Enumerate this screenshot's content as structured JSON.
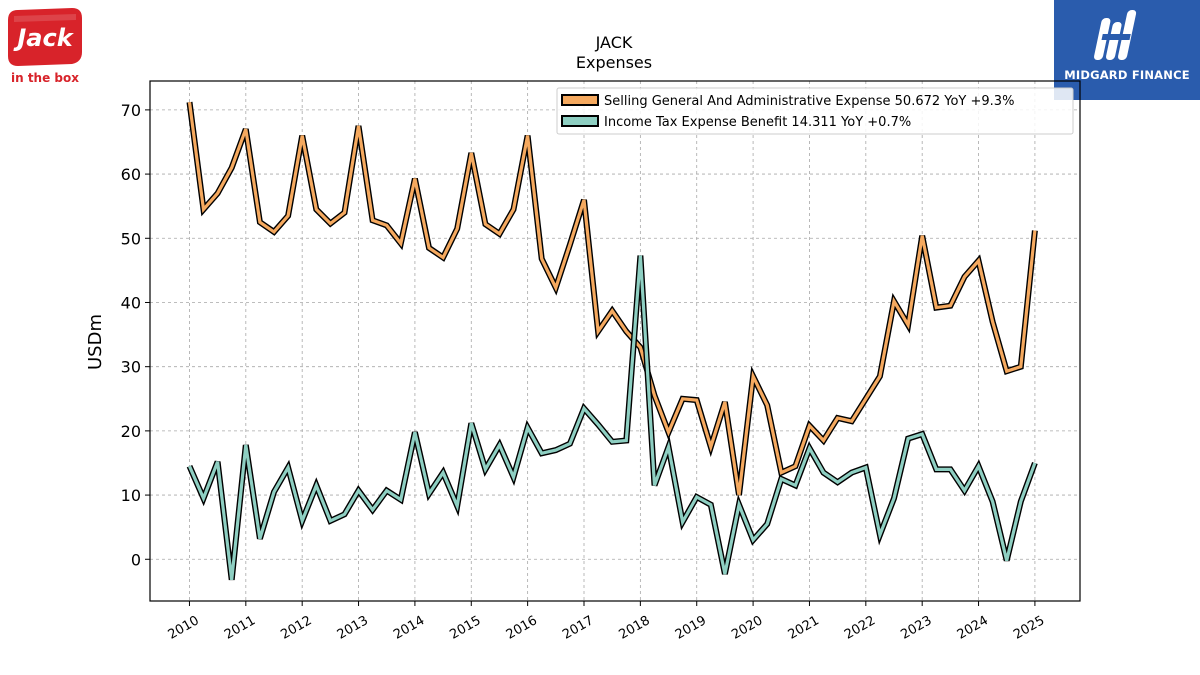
{
  "brand_left": {
    "name": "Jack",
    "tagline": "in the box",
    "color": "#d8232a"
  },
  "brand_right": {
    "name": "MIDGARD FINANCE",
    "color": "#2a5cad"
  },
  "chart_data": {
    "type": "line",
    "title": "JACK",
    "subtitle": "Expenses",
    "ylabel": "USDm",
    "xlabel": "",
    "ylim": [
      -6.5,
      74.5
    ],
    "xlim": [
      2009.3,
      2025.8
    ],
    "yticks": [
      0,
      10,
      20,
      30,
      40,
      50,
      60,
      70
    ],
    "xticks": [
      "2010",
      "2011",
      "2012",
      "2013",
      "2014",
      "2015",
      "2016",
      "2017",
      "2018",
      "2019",
      "2020",
      "2021",
      "2022",
      "2023",
      "2024",
      "2025"
    ],
    "grid": true,
    "legend_position": "top-right",
    "series": [
      {
        "name": "Selling General And Administrative Expense",
        "legend": "Selling General And Administrative Expense  50.672 YoY +9.3%",
        "color": "#f5a95f",
        "x": [
          2010.0,
          2010.25,
          2010.5,
          2010.75,
          2011.0,
          2011.25,
          2011.5,
          2011.75,
          2012.0,
          2012.25,
          2012.5,
          2012.75,
          2013.0,
          2013.25,
          2013.5,
          2013.75,
          2014.0,
          2014.25,
          2014.5,
          2014.75,
          2015.0,
          2015.25,
          2015.5,
          2015.75,
          2016.0,
          2016.25,
          2016.5,
          2016.75,
          2017.0,
          2017.25,
          2017.5,
          2017.75,
          2018.0,
          2018.25,
          2018.5,
          2018.75,
          2019.0,
          2019.25,
          2019.5,
          2019.75,
          2020.0,
          2020.25,
          2020.5,
          2020.75,
          2021.0,
          2021.25,
          2021.5,
          2021.75,
          2022.0,
          2022.25,
          2022.5,
          2022.75,
          2023.0,
          2023.25,
          2023.5,
          2023.75,
          2024.0,
          2024.25,
          2024.5,
          2024.75,
          2025.0
        ],
        "values": [
          71.2,
          54.5,
          57.0,
          61.0,
          67.0,
          52.5,
          51.0,
          53.5,
          66.0,
          54.5,
          52.3,
          54.0,
          67.5,
          52.8,
          52.0,
          49.2,
          59.3,
          48.5,
          47.0,
          51.5,
          63.3,
          52.2,
          50.7,
          54.5,
          66.0,
          46.8,
          42.3,
          49.0,
          56.0,
          35.5,
          38.7,
          35.5,
          33.0,
          25.5,
          19.8,
          25.0,
          24.8,
          17.5,
          24.5,
          10.0,
          28.5,
          24.0,
          13.5,
          14.5,
          20.8,
          18.5,
          22.0,
          21.5,
          25.0,
          28.5,
          40.2,
          36.5,
          50.4,
          39.2,
          39.5,
          44.0,
          46.5,
          37.0,
          29.3,
          30.0,
          51.2
        ]
      },
      {
        "name": "Income Tax Expense Benefit",
        "legend": "Income Tax Expense Benefit  14.311 YoY +0.7%",
        "color": "#8ecfc2",
        "x": [
          2010.0,
          2010.25,
          2010.5,
          2010.75,
          2011.0,
          2011.25,
          2011.5,
          2011.75,
          2012.0,
          2012.25,
          2012.5,
          2012.75,
          2013.0,
          2013.25,
          2013.5,
          2013.75,
          2014.0,
          2014.25,
          2014.5,
          2014.75,
          2015.0,
          2015.25,
          2015.5,
          2015.75,
          2016.0,
          2016.25,
          2016.5,
          2016.75,
          2017.0,
          2017.25,
          2017.5,
          2017.75,
          2018.0,
          2018.25,
          2018.5,
          2018.75,
          2019.0,
          2019.25,
          2019.5,
          2019.75,
          2020.0,
          2020.25,
          2020.5,
          2020.75,
          2021.0,
          2021.25,
          2021.5,
          2021.75,
          2022.0,
          2022.25,
          2022.5,
          2022.75,
          2023.0,
          2023.25,
          2023.5,
          2023.75,
          2024.0,
          2024.25,
          2024.5,
          2024.75,
          2025.0
        ],
        "values": [
          14.5,
          9.5,
          15.2,
          -3.2,
          17.8,
          3.2,
          10.5,
          14.3,
          6.0,
          11.5,
          6.0,
          7.0,
          10.7,
          7.7,
          10.7,
          9.3,
          19.8,
          10.2,
          13.5,
          8.3,
          21.2,
          14.0,
          17.8,
          12.8,
          20.5,
          16.5,
          17.0,
          18.0,
          23.5,
          21.0,
          18.3,
          18.5,
          47.3,
          11.5,
          17.5,
          5.8,
          9.7,
          8.5,
          -2.3,
          8.5,
          3.0,
          5.5,
          12.5,
          11.5,
          17.3,
          13.5,
          12.0,
          13.5,
          14.3,
          3.8,
          9.5,
          18.8,
          19.5,
          14.0,
          14.0,
          10.7,
          14.5,
          9.0,
          -0.2,
          9.0,
          15.0
        ]
      }
    ]
  }
}
